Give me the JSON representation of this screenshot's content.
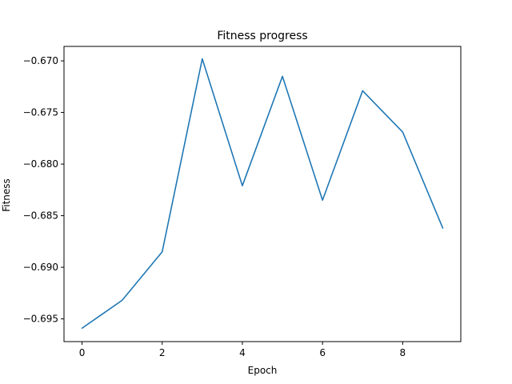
{
  "chart_data": {
    "type": "line",
    "title": "Fitness progress",
    "xlabel": "Epoch",
    "ylabel": "Fitness",
    "xlim": [
      -0.45,
      9.45
    ],
    "ylim": [
      -0.6972,
      -0.6686
    ],
    "x_ticks": [
      0,
      2,
      4,
      6,
      8
    ],
    "x_tick_labels": [
      "0",
      "2",
      "4",
      "6",
      "8"
    ],
    "y_ticks": [
      -0.695,
      -0.69,
      -0.685,
      -0.68,
      -0.675,
      -0.67
    ],
    "y_tick_labels": [
      "−0.695",
      "−0.690",
      "−0.685",
      "−0.680",
      "−0.675",
      "−0.670"
    ],
    "grid": false,
    "line_color": "#1f77b4",
    "series": [
      {
        "x": [
          0,
          1,
          2,
          3,
          4,
          5,
          6,
          7,
          8,
          9
        ],
        "values": [
          -0.6959,
          -0.6932,
          -0.6885,
          -0.6698,
          -0.6821,
          -0.6715,
          -0.6835,
          -0.6729,
          -0.6769,
          -0.6862
        ]
      }
    ]
  }
}
